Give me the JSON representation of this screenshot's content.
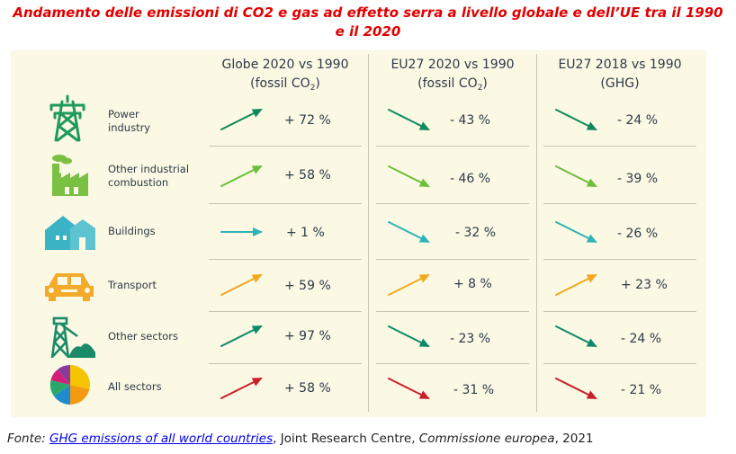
{
  "title_line1": "Andamento delle emissioni di CO2 e gas ad effetto serra a livello globale e dell’UE tra il 1990",
  "title_line2": "e il 2020",
  "columns": [
    {
      "line1": "Globe 2020 vs 1990",
      "line2_pre": "(fossil CO",
      "line2_sub": "2",
      "line2_post": ")"
    },
    {
      "line1": "EU27 2020 vs 1990",
      "line2_pre": "(fossil CO",
      "line2_sub": "2",
      "line2_post": ")"
    },
    {
      "line1": "EU27 2018 vs 1990",
      "line2_pre": "(GHG)",
      "line2_sub": "",
      "line2_post": ""
    }
  ],
  "rows": [
    {
      "label": "Power\nindustry",
      "icon": "power-pylon-icon",
      "color": "#0e8a5a",
      "values": [
        "+ 72 %",
        "- 43 %",
        "- 24 %"
      ]
    },
    {
      "label": "Other industrial\ncombustion",
      "icon": "factory-icon",
      "color": "#6cbf3a",
      "values": [
        "+ 58 %",
        "- 46 %",
        "- 39 %"
      ]
    },
    {
      "label": "Buildings",
      "icon": "house-icon",
      "color": "#2fb3b8",
      "values": [
        "+ 1 %",
        "- 32 %",
        "- 26 %"
      ]
    },
    {
      "label": "Transport",
      "icon": "car-icon",
      "color": "#f2a81e",
      "values": [
        "+ 59 %",
        "+ 8 %",
        "+ 23 %"
      ]
    },
    {
      "label": "Other sectors",
      "icon": "mine-tower-icon",
      "color": "#0e8a6a",
      "values": [
        "+ 97 %",
        "- 23 %",
        "- 24 %"
      ]
    },
    {
      "label": "All sectors",
      "icon": "pie-chart-icon",
      "color": "#c8202a",
      "values": [
        "+ 58 %",
        "- 31 %",
        "- 21 %"
      ]
    }
  ],
  "chart_data": {
    "type": "table",
    "title": "Andamento delle emissioni di CO2 e gas ad effetto serra a livello globale e dell’UE tra il 1990 e il 2020",
    "columns": [
      "Globe 2020 vs 1990 (fossil CO2)",
      "EU27 2020 vs 1990 (fossil CO2)",
      "EU27 2018 vs 1990 (GHG)"
    ],
    "categories": [
      "Power industry",
      "Other industrial combustion",
      "Buildings",
      "Transport",
      "Other sectors",
      "All sectors"
    ],
    "series": [
      {
        "name": "Globe 2020 vs 1990 (fossil CO2)",
        "values": [
          72,
          58,
          1,
          59,
          97,
          58
        ]
      },
      {
        "name": "EU27 2020 vs 1990 (fossil CO2)",
        "values": [
          -43,
          -46,
          -32,
          8,
          -23,
          -31
        ]
      },
      {
        "name": "EU27 2018 vs 1990 (GHG)",
        "values": [
          -24,
          -39,
          -26,
          23,
          -24,
          -21
        ]
      }
    ],
    "unit": "%"
  },
  "source": {
    "prefix": "Fonte: ",
    "link_text": "GHG emissions of all world countries",
    "middle": ", Joint Research Centre, ",
    "commission": "Commissione europea",
    "suffix": ", 2021"
  }
}
